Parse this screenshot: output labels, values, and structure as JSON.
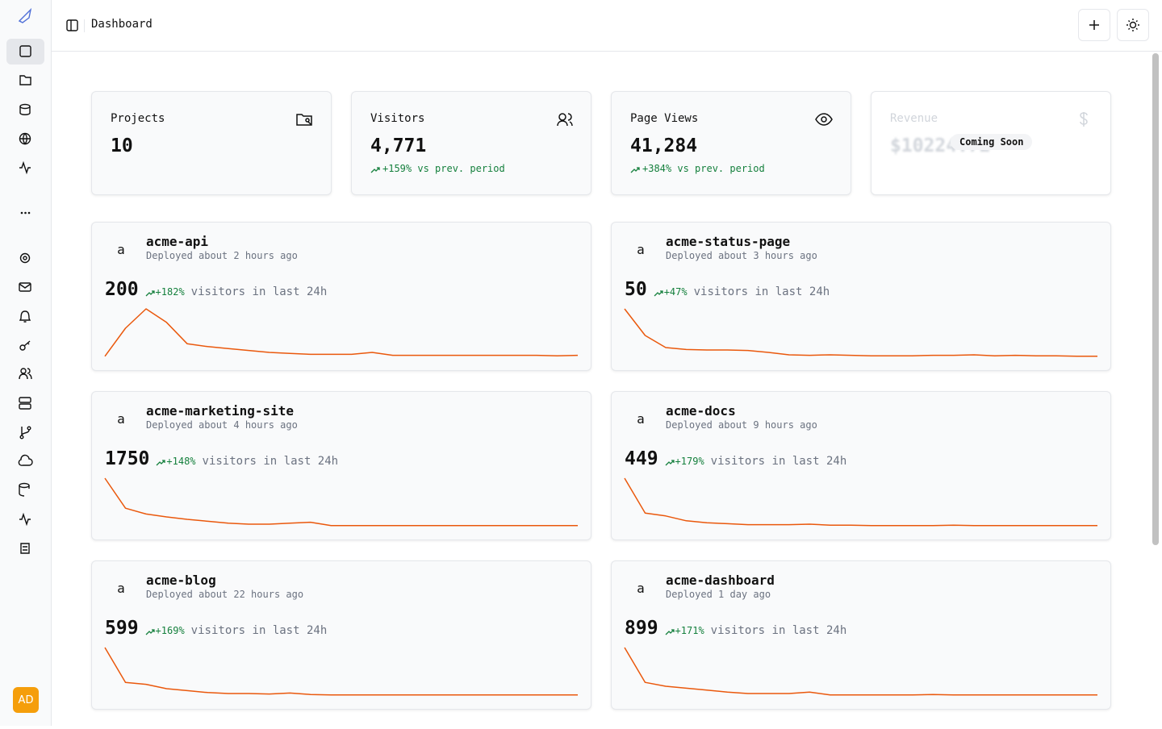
{
  "header": {
    "title": "Dashboard"
  },
  "stats": [
    {
      "label": "Projects",
      "value": "10"
    },
    {
      "label": "Visitors",
      "value": "4,771",
      "change": "+159% vs prev. period"
    },
    {
      "label": "Page Views",
      "value": "41,284",
      "change": "+384% vs prev. period"
    },
    {
      "label": "Revenue",
      "value": "$10224.72",
      "badge": "Coming Soon"
    }
  ],
  "projects": [
    {
      "avatar": "a",
      "name": "acme-api",
      "deployed": "Deployed about 2 hours ago",
      "visitors": 200,
      "change": "+182%",
      "caption": "visitors in last 24h",
      "sparkline": [
        2,
        60,
        100,
        72,
        28,
        22,
        18,
        14,
        10,
        8,
        6,
        6,
        6,
        10,
        4,
        4,
        4,
        4,
        4,
        4,
        4,
        4,
        3,
        4
      ]
    },
    {
      "avatar": "a",
      "name": "acme-status-page",
      "deployed": "Deployed about 3 hours ago",
      "visitors": 50,
      "change": "+47%",
      "caption": "visitors in last 24h",
      "sparkline": [
        100,
        45,
        20,
        16,
        15,
        15,
        14,
        10,
        5,
        4,
        5,
        4,
        3,
        3,
        3,
        4,
        4,
        5,
        3,
        4,
        3,
        3,
        2,
        2
      ]
    },
    {
      "avatar": "a",
      "name": "acme-marketing-site",
      "deployed": "Deployed about 4 hours ago",
      "visitors": 1750,
      "change": "+148%",
      "caption": "visitors in last 24h",
      "sparkline": [
        100,
        38,
        26,
        20,
        15,
        11,
        7,
        5,
        5,
        7,
        9,
        2,
        2,
        2,
        2,
        2,
        2,
        2,
        2,
        2,
        2,
        2,
        2,
        2
      ]
    },
    {
      "avatar": "a",
      "name": "acme-docs",
      "deployed": "Deployed about 9 hours ago",
      "visitors": 449,
      "change": "+179%",
      "caption": "visitors in last 24h",
      "sparkline": [
        100,
        28,
        22,
        12,
        8,
        6,
        4,
        4,
        4,
        5,
        3,
        3,
        2,
        2,
        2,
        2,
        3,
        2,
        2,
        2,
        2,
        2,
        2,
        2
      ]
    },
    {
      "avatar": "a",
      "name": "acme-blog",
      "deployed": "Deployed about 22 hours ago",
      "visitors": 599,
      "change": "+169%",
      "caption": "visitors in last 24h",
      "sparkline": [
        100,
        28,
        24,
        15,
        11,
        7,
        5,
        5,
        4,
        6,
        3,
        2,
        2,
        2,
        2,
        2,
        2,
        2,
        2,
        2,
        2,
        2,
        2,
        2
      ]
    },
    {
      "avatar": "a",
      "name": "acme-dashboard",
      "deployed": "Deployed 1 day ago",
      "visitors": 899,
      "change": "+171%",
      "caption": "visitors in last 24h",
      "sparkline": [
        100,
        28,
        20,
        16,
        12,
        8,
        5,
        5,
        5,
        8,
        2,
        2,
        2,
        2,
        2,
        3,
        2,
        2,
        2,
        2,
        2,
        2,
        2,
        2
      ]
    }
  ],
  "user": {
    "initials": "AD"
  }
}
